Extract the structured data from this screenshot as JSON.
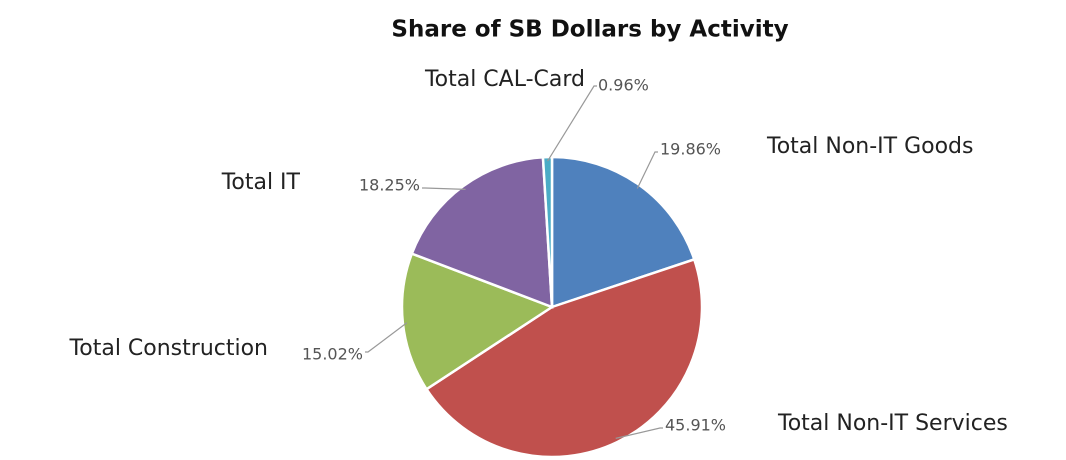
{
  "chart_data": {
    "type": "pie",
    "title": "Share of SB Dollars by Activity",
    "categories": [
      "Total Non-IT Goods",
      "Total Non-IT Services",
      "Total Construction",
      "Total IT",
      "Total CAL-Card"
    ],
    "values": [
      19.86,
      45.91,
      15.02,
      18.25,
      0.96
    ],
    "value_labels": [
      "19.86%",
      "45.91%",
      "15.02%",
      "18.25%",
      "0.96%"
    ],
    "colors": [
      "#4f81bd",
      "#c0504d",
      "#9bbb59",
      "#8064a2",
      "#4bacc6"
    ]
  }
}
